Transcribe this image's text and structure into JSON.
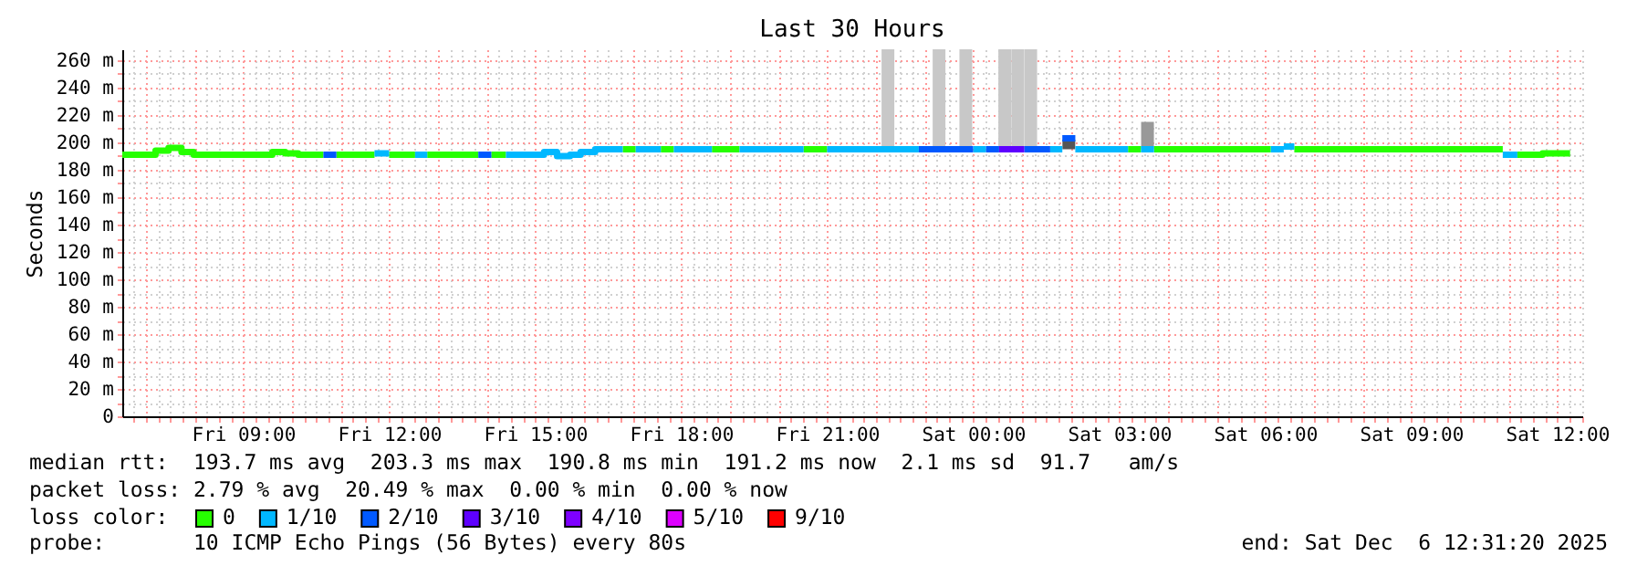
{
  "chart_data": {
    "type": "line",
    "title": "Last 30 Hours",
    "ylabel": "Seconds",
    "xlim": [
      "2025-12-05T06:31",
      "2025-12-06T12:31"
    ],
    "xticks": [
      {
        "value": "2025-12-05T06:45",
        "label": null
      },
      {
        "value": "2025-12-05T07:00",
        "label": null
      },
      {
        "value": "2025-12-05T07:15",
        "label": null
      },
      {
        "value": "2025-12-05T07:30",
        "label": null
      },
      {
        "value": "2025-12-05T07:45",
        "label": null
      },
      {
        "value": "2025-12-05T08:00",
        "label": null
      },
      {
        "value": "2025-12-05T08:15",
        "label": null
      },
      {
        "value": "2025-12-05T08:30",
        "label": null
      },
      {
        "value": "2025-12-05T08:45",
        "label": null
      },
      {
        "value": "2025-12-05T09:00",
        "label": "Fri 09:00"
      },
      {
        "value": "2025-12-05T09:15",
        "label": null
      },
      {
        "value": "2025-12-05T09:30",
        "label": null
      },
      {
        "value": "2025-12-05T09:45",
        "label": null
      },
      {
        "value": "2025-12-05T10:00",
        "label": null
      },
      {
        "value": "2025-12-05T10:15",
        "label": null
      },
      {
        "value": "2025-12-05T10:30",
        "label": null
      },
      {
        "value": "2025-12-05T10:45",
        "label": null
      },
      {
        "value": "2025-12-05T11:00",
        "label": null
      },
      {
        "value": "2025-12-05T11:15",
        "label": null
      },
      {
        "value": "2025-12-05T11:30",
        "label": null
      },
      {
        "value": "2025-12-05T11:45",
        "label": null
      },
      {
        "value": "2025-12-05T12:00",
        "label": "Fri 12:00"
      },
      {
        "value": "2025-12-05T12:15",
        "label": null
      },
      {
        "value": "2025-12-05T12:30",
        "label": null
      },
      {
        "value": "2025-12-05T12:45",
        "label": null
      },
      {
        "value": "2025-12-05T13:00",
        "label": null
      },
      {
        "value": "2025-12-05T13:15",
        "label": null
      },
      {
        "value": "2025-12-05T13:30",
        "label": null
      },
      {
        "value": "2025-12-05T13:45",
        "label": null
      },
      {
        "value": "2025-12-05T14:00",
        "label": null
      },
      {
        "value": "2025-12-05T14:15",
        "label": null
      },
      {
        "value": "2025-12-05T14:30",
        "label": null
      },
      {
        "value": "2025-12-05T14:45",
        "label": null
      },
      {
        "value": "2025-12-05T15:00",
        "label": "Fri 15:00"
      },
      {
        "value": "2025-12-05T15:15",
        "label": null
      },
      {
        "value": "2025-12-05T15:30",
        "label": null
      },
      {
        "value": "2025-12-05T15:45",
        "label": null
      },
      {
        "value": "2025-12-05T16:00",
        "label": null
      },
      {
        "value": "2025-12-05T16:15",
        "label": null
      },
      {
        "value": "2025-12-05T16:30",
        "label": null
      },
      {
        "value": "2025-12-05T16:45",
        "label": null
      },
      {
        "value": "2025-12-05T17:00",
        "label": null
      },
      {
        "value": "2025-12-05T17:15",
        "label": null
      },
      {
        "value": "2025-12-05T17:30",
        "label": null
      },
      {
        "value": "2025-12-05T17:45",
        "label": null
      },
      {
        "value": "2025-12-05T18:00",
        "label": "Fri 18:00"
      },
      {
        "value": "2025-12-05T18:15",
        "label": null
      },
      {
        "value": "2025-12-05T18:30",
        "label": null
      },
      {
        "value": "2025-12-05T18:45",
        "label": null
      },
      {
        "value": "2025-12-05T19:00",
        "label": null
      },
      {
        "value": "2025-12-05T19:15",
        "label": null
      },
      {
        "value": "2025-12-05T19:30",
        "label": null
      },
      {
        "value": "2025-12-05T19:45",
        "label": null
      },
      {
        "value": "2025-12-05T20:00",
        "label": null
      },
      {
        "value": "2025-12-05T20:15",
        "label": null
      },
      {
        "value": "2025-12-05T20:30",
        "label": null
      },
      {
        "value": "2025-12-05T20:45",
        "label": null
      },
      {
        "value": "2025-12-05T21:00",
        "label": "Fri 21:00"
      },
      {
        "value": "2025-12-05T21:15",
        "label": null
      },
      {
        "value": "2025-12-05T21:30",
        "label": null
      },
      {
        "value": "2025-12-05T21:45",
        "label": null
      },
      {
        "value": "2025-12-05T22:00",
        "label": null
      },
      {
        "value": "2025-12-05T22:15",
        "label": null
      },
      {
        "value": "2025-12-05T22:30",
        "label": null
      },
      {
        "value": "2025-12-05T22:45",
        "label": null
      },
      {
        "value": "2025-12-05T23:00",
        "label": null
      },
      {
        "value": "2025-12-05T23:15",
        "label": null
      },
      {
        "value": "2025-12-05T23:30",
        "label": null
      },
      {
        "value": "2025-12-05T23:45",
        "label": null
      },
      {
        "value": "2025-12-06T00:00",
        "label": "Sat 00:00"
      },
      {
        "value": "2025-12-06T00:15",
        "label": null
      },
      {
        "value": "2025-12-06T00:30",
        "label": null
      },
      {
        "value": "2025-12-06T00:45",
        "label": null
      },
      {
        "value": "2025-12-06T01:00",
        "label": null
      },
      {
        "value": "2025-12-06T01:15",
        "label": null
      },
      {
        "value": "2025-12-06T01:30",
        "label": null
      },
      {
        "value": "2025-12-06T01:45",
        "label": null
      },
      {
        "value": "2025-12-06T02:00",
        "label": null
      },
      {
        "value": "2025-12-06T02:15",
        "label": null
      },
      {
        "value": "2025-12-06T02:30",
        "label": null
      },
      {
        "value": "2025-12-06T02:45",
        "label": null
      },
      {
        "value": "2025-12-06T03:00",
        "label": "Sat 03:00"
      },
      {
        "value": "2025-12-06T03:15",
        "label": null
      },
      {
        "value": "2025-12-06T03:30",
        "label": null
      },
      {
        "value": "2025-12-06T03:45",
        "label": null
      },
      {
        "value": "2025-12-06T04:00",
        "label": null
      },
      {
        "value": "2025-12-06T04:15",
        "label": null
      },
      {
        "value": "2025-12-06T04:30",
        "label": null
      },
      {
        "value": "2025-12-06T04:45",
        "label": null
      },
      {
        "value": "2025-12-06T05:00",
        "label": null
      },
      {
        "value": "2025-12-06T05:15",
        "label": null
      },
      {
        "value": "2025-12-06T05:30",
        "label": null
      },
      {
        "value": "2025-12-06T05:45",
        "label": null
      },
      {
        "value": "2025-12-06T06:00",
        "label": "Sat 06:00"
      },
      {
        "value": "2025-12-06T06:15",
        "label": null
      },
      {
        "value": "2025-12-06T06:30",
        "label": null
      },
      {
        "value": "2025-12-06T06:45",
        "label": null
      },
      {
        "value": "2025-12-06T07:00",
        "label": null
      },
      {
        "value": "2025-12-06T07:15",
        "label": null
      },
      {
        "value": "2025-12-06T07:30",
        "label": null
      },
      {
        "value": "2025-12-06T07:45",
        "label": null
      },
      {
        "value": "2025-12-06T08:00",
        "label": null
      },
      {
        "value": "2025-12-06T08:15",
        "label": null
      },
      {
        "value": "2025-12-06T08:30",
        "label": null
      },
      {
        "value": "2025-12-06T08:45",
        "label": null
      },
      {
        "value": "2025-12-06T09:00",
        "label": "Sat 09:00"
      },
      {
        "value": "2025-12-06T09:15",
        "label": null
      },
      {
        "value": "2025-12-06T09:30",
        "label": null
      },
      {
        "value": "2025-12-06T09:45",
        "label": null
      },
      {
        "value": "2025-12-06T10:00",
        "label": null
      },
      {
        "value": "2025-12-06T10:15",
        "label": null
      },
      {
        "value": "2025-12-06T10:30",
        "label": null
      },
      {
        "value": "2025-12-06T10:45",
        "label": null
      },
      {
        "value": "2025-12-06T11:00",
        "label": null
      },
      {
        "value": "2025-12-06T11:15",
        "label": null
      },
      {
        "value": "2025-12-06T11:30",
        "label": null
      },
      {
        "value": "2025-12-06T11:45",
        "label": null
      },
      {
        "value": "2025-12-06T12:00",
        "label": "Sat 12:00"
      },
      {
        "value": "2025-12-06T12:15",
        "label": null
      },
      {
        "value": "2025-12-06T12:30",
        "label": null
      }
    ],
    "ylim": [
      0,
      268
    ],
    "yticks": [
      {
        "value": 0,
        "label": "0"
      },
      {
        "value": 10,
        "label": null
      },
      {
        "value": 20,
        "label": "20 m"
      },
      {
        "value": 30,
        "label": null
      },
      {
        "value": 40,
        "label": "40 m"
      },
      {
        "value": 50,
        "label": null
      },
      {
        "value": 60,
        "label": "60 m"
      },
      {
        "value": 70,
        "label": null
      },
      {
        "value": 80,
        "label": "80 m"
      },
      {
        "value": 90,
        "label": null
      },
      {
        "value": 100,
        "label": "100 m"
      },
      {
        "value": 110,
        "label": null
      },
      {
        "value": 120,
        "label": "120 m"
      },
      {
        "value": 130,
        "label": null
      },
      {
        "value": 140,
        "label": "140 m"
      },
      {
        "value": 150,
        "label": null
      },
      {
        "value": 160,
        "label": "160 m"
      },
      {
        "value": 170,
        "label": null
      },
      {
        "value": 180,
        "label": "180 m"
      },
      {
        "value": 190,
        "label": null
      },
      {
        "value": 200,
        "label": "200 m"
      },
      {
        "value": 210,
        "label": null
      },
      {
        "value": 220,
        "label": "220 m"
      },
      {
        "value": 230,
        "label": null
      },
      {
        "value": 240,
        "label": "240 m"
      },
      {
        "value": 250,
        "label": null
      },
      {
        "value": 260,
        "label": "260 m"
      }
    ],
    "grid": true,
    "legend": "bottom",
    "legend_title": "loss color:",
    "series": [
      {
        "type": "bar",
        "color": "#c8c8c8",
        "x": [
          "2025-12-05T22:15",
          "2025-12-05T23:18",
          "2025-12-05T23:51",
          "2025-12-06T00:39",
          "2025-12-06T00:55",
          "2025-12-06T01:11"
        ],
        "base": [
          195,
          195,
          195,
          195,
          195,
          195
        ],
        "values": [
          73,
          73,
          73,
          73,
          73,
          73
        ]
      },
      {
        "type": "bar",
        "color": "#999999",
        "x": [
          "2025-12-06T03:35"
        ],
        "base": [
          195
        ],
        "values": [
          20
        ]
      },
      {
        "type": "bar",
        "color": "#555555",
        "x": [
          "2025-12-06T01:58"
        ],
        "base": [
          195
        ],
        "values": [
          7
        ]
      },
      {
        "name": "0",
        "color": "#26ff00",
        "x": [
          "2025-12-05T06:31",
          "2025-12-05T07:12",
          "2025-12-05T07:12",
          "2025-12-05T07:28",
          "2025-12-05T07:28",
          "2025-12-05T07:44",
          "2025-12-05T07:44",
          "2025-12-05T07:59",
          "2025-12-05T07:59",
          "2025-12-05T09:36",
          "2025-12-05T09:36",
          "2025-12-05T09:52",
          "2025-12-05T09:52",
          "2025-12-05T10:08",
          "2025-12-05T10:08",
          "2025-12-05T10:39",
          null,
          "2025-12-05T10:55",
          "2025-12-05T11:42",
          null,
          "2025-12-05T12:00",
          "2025-12-05T12:32",
          null,
          "2025-12-05T12:47",
          "2025-12-05T13:50",
          null,
          "2025-12-05T14:06",
          "2025-12-05T14:24",
          null,
          "2025-12-05T16:48",
          "2025-12-05T17:04",
          null,
          "2025-12-05T17:35",
          "2025-12-05T17:51",
          null,
          "2025-12-05T18:38",
          "2025-12-05T19:12",
          null,
          "2025-12-05T20:31",
          "2025-12-05T21:00",
          null,
          "2025-12-06T03:11",
          "2025-12-06T03:27",
          null,
          "2025-12-06T03:43",
          "2025-12-06T06:07",
          null,
          "2025-12-06T06:36",
          "2025-12-06T10:53",
          null,
          "2025-12-06T11:11",
          "2025-12-06T11:42",
          "2025-12-06T11:42",
          "2025-12-06T12:16"
        ],
        "values": [
          191,
          191,
          194,
          194,
          196,
          196,
          193,
          193,
          191,
          191,
          193,
          193,
          192,
          192,
          191,
          191,
          null,
          191,
          191,
          null,
          191,
          191,
          null,
          191,
          191,
          null,
          191,
          191,
          null,
          195,
          195,
          null,
          195,
          195,
          null,
          195,
          195,
          null,
          195,
          195,
          null,
          195,
          195,
          null,
          195,
          195,
          null,
          195,
          195,
          null,
          191,
          191,
          192,
          192
        ]
      },
      {
        "name": "1/10",
        "color": "#00b8ff",
        "x": [
          "2025-12-05T11:42",
          "2025-12-05T12:00",
          null,
          "2025-12-05T12:32",
          "2025-12-05T12:47",
          null,
          "2025-12-05T14:24",
          "2025-12-05T15:11",
          "2025-12-05T15:11",
          "2025-12-05T15:27",
          "2025-12-05T15:27",
          "2025-12-05T15:43",
          "2025-12-05T15:43",
          "2025-12-05T15:56",
          "2025-12-05T15:56",
          "2025-12-05T16:14",
          "2025-12-05T16:14",
          "2025-12-05T16:48",
          null,
          "2025-12-05T17:04",
          "2025-12-05T17:35",
          null,
          "2025-12-05T17:51",
          "2025-12-05T18:38",
          null,
          "2025-12-05T19:12",
          "2025-12-05T20:31",
          null,
          "2025-12-05T21:00",
          "2025-12-05T22:53",
          null,
          "2025-12-06T00:00",
          "2025-12-06T00:16",
          null,
          "2025-12-06T01:35",
          "2025-12-06T01:50",
          null,
          "2025-12-06T02:06",
          "2025-12-06T03:11",
          null,
          "2025-12-06T03:27",
          "2025-12-06T03:43",
          null,
          "2025-12-06T06:07",
          "2025-12-06T06:23",
          null,
          "2025-12-06T06:23",
          "2025-12-06T06:36",
          null,
          "2025-12-06T10:53",
          "2025-12-06T11:11"
        ],
        "values": [
          192,
          192,
          null,
          191,
          191,
          null,
          191,
          191,
          193,
          193,
          190,
          190,
          191,
          191,
          193,
          193,
          195,
          195,
          null,
          195,
          195,
          null,
          195,
          195,
          null,
          195,
          195,
          null,
          195,
          195,
          null,
          195,
          195,
          null,
          195,
          195,
          null,
          195,
          195,
          null,
          195,
          195,
          null,
          195,
          195,
          null,
          197,
          197,
          null,
          191,
          191
        ]
      },
      {
        "name": "2/10",
        "color": "#0059ff",
        "x": [
          "2025-12-05T10:39",
          "2025-12-05T10:55",
          null,
          "2025-12-05T13:50",
          "2025-12-05T14:06",
          null,
          "2025-12-05T22:53",
          "2025-12-06T00:00",
          null,
          "2025-12-06T00:16",
          "2025-12-06T00:32",
          null,
          "2025-12-06T01:03",
          "2025-12-06T01:35",
          null,
          "2025-12-06T01:50",
          "2025-12-06T02:06"
        ],
        "values": [
          191,
          191,
          null,
          191,
          191,
          null,
          195,
          195,
          null,
          195,
          195,
          null,
          195,
          195,
          null,
          203,
          203
        ]
      },
      {
        "name": "3/10",
        "color": "#5e00ff",
        "x": [
          "2025-12-06T00:32",
          "2025-12-06T01:03"
        ],
        "values": [
          195,
          195
        ]
      },
      {
        "name": "4/10",
        "color": "#7e00ff"
      },
      {
        "name": "5/10",
        "color": "#dd00ff"
      },
      {
        "name": "9/10",
        "color": "#ff0000"
      }
    ],
    "annotations": [
      "median rtt:  193.7 ms avg  203.3 ms max  190.8 ms min  191.2 ms now  2.1 ms sd  91.7   am/s",
      "packet loss: 2.79 % avg  20.49 % max  0.00 % min  0.00 % now",
      "probe:       10 ICMP Echo Pings (56 Bytes) every 80s",
      "end: Sat Dec  6 12:31:20 2025"
    ]
  }
}
